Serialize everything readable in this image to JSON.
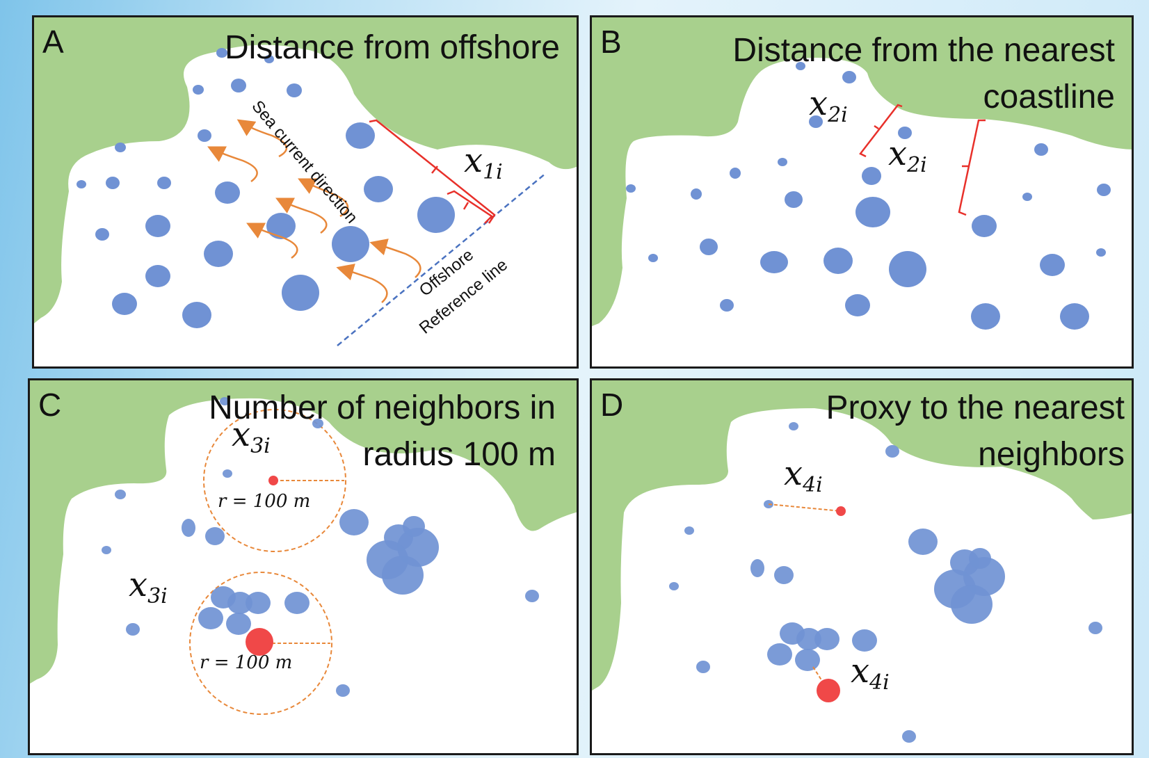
{
  "panels": {
    "a": {
      "letter": "A",
      "title": "Distance from offshore",
      "current_label": "Sea current direction",
      "ref_label_1": "Offshore",
      "ref_label_2": "Reference line",
      "var_base": "x",
      "var_sub": "1i"
    },
    "b": {
      "letter": "B",
      "title_line1": "Distance from the nearest",
      "title_line2": "coastline",
      "var_base": "x",
      "var_sub": "2i"
    },
    "c": {
      "letter": "C",
      "title_line1": "Number of neighbors in",
      "title_line2": "radius 100 m",
      "var_base": "x",
      "var_sub": "3i",
      "radius_label": "r =  100 m"
    },
    "d": {
      "letter": "D",
      "title_line1": "Proxy to the nearest",
      "title_line2": "neighbors",
      "var_base": "x",
      "var_sub": "4i"
    }
  },
  "colors": {
    "land": "#a8d08d",
    "island": "#7092d4",
    "target": "#f04848",
    "bracket": "#e8302a",
    "current_arrow": "#e8883a",
    "reference_line": "#4a72c0",
    "radius_circle": "#e8883a"
  }
}
